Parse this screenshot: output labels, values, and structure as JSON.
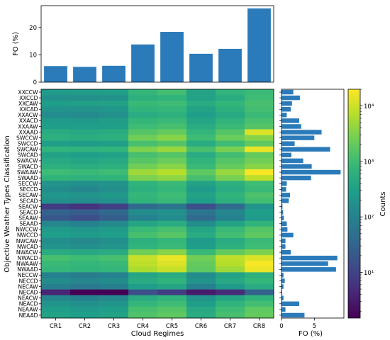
{
  "chart_data": [
    {
      "type": "bar",
      "name": "top-fo-bar-chart",
      "categories": [
        "CR1",
        "CR2",
        "CR3",
        "CR4",
        "CR5",
        "CR6",
        "CR7",
        "CR8"
      ],
      "values": [
        5.9,
        5.6,
        6.0,
        13.8,
        18.4,
        10.4,
        12.2,
        27.0
      ],
      "ylabel": "FO (%)",
      "ylim": [
        0,
        28
      ],
      "yticks": [
        0,
        10,
        20
      ],
      "color": "#2b7bba"
    },
    {
      "type": "heatmap",
      "name": "counts-heatmap",
      "xlabel": "Cloud Regimes",
      "ylabel": "Objective Weather Types Classification",
      "x": [
        "CR1",
        "CR2",
        "CR3",
        "CR4",
        "CR5",
        "CR6",
        "CR7",
        "CR8"
      ],
      "y": [
        "XXCCW",
        "XXCCD",
        "XXCAW",
        "XXCAD",
        "XXACW",
        "XXACD",
        "XXAAW",
        "XXAAD",
        "SWCCW",
        "SWCCD",
        "SWCAW",
        "SWCAD",
        "SWACW",
        "SWACD",
        "SWAAW",
        "SWAAD",
        "SECCW",
        "SECCD",
        "SECAW",
        "SECAD",
        "SEACW",
        "SEACD",
        "SEAAW",
        "SEAAD",
        "NWCCW",
        "NWCCD",
        "NWCAW",
        "NWCAD",
        "NWACW",
        "NWACD",
        "NWAAW",
        "NWAAD",
        "NECCW",
        "NECCD",
        "NECAW",
        "NECAD",
        "NEACW",
        "NEACD",
        "NEAAW",
        "NEAAD"
      ],
      "colorscale": "log",
      "zrange": [
        1.5,
        20000
      ],
      "values": [
        [
          250,
          270,
          290,
          800,
          1100,
          350,
          700,
          900
        ],
        [
          180,
          170,
          190,
          600,
          700,
          350,
          500,
          1000
        ],
        [
          300,
          320,
          340,
          900,
          1000,
          500,
          800,
          1200
        ],
        [
          200,
          190,
          220,
          700,
          800,
          350,
          600,
          1100
        ],
        [
          150,
          140,
          170,
          500,
          600,
          300,
          450,
          900
        ],
        [
          250,
          240,
          270,
          800,
          900,
          400,
          700,
          1200
        ],
        [
          300,
          290,
          310,
          1000,
          1200,
          500,
          900,
          1500
        ],
        [
          500,
          450,
          520,
          1500,
          2000,
          800,
          1500,
          12000
        ],
        [
          600,
          550,
          600,
          2500,
          3500,
          1000,
          2200,
          3500
        ],
        [
          300,
          280,
          310,
          1200,
          1500,
          500,
          1000,
          1800
        ],
        [
          700,
          650,
          700,
          3000,
          4500,
          1200,
          2800,
          15000
        ],
        [
          350,
          300,
          330,
          1200,
          1500,
          500,
          1100,
          2000
        ],
        [
          450,
          400,
          450,
          1600,
          2200,
          700,
          1500,
          2500
        ],
        [
          600,
          550,
          600,
          2500,
          3500,
          900,
          2000,
          3500
        ],
        [
          1000,
          900,
          1000,
          5000,
          7000,
          1800,
          4500,
          18000
        ],
        [
          700,
          650,
          700,
          3000,
          4000,
          1200,
          2800,
          8000
        ],
        [
          200,
          180,
          200,
          700,
          900,
          350,
          600,
          1000
        ],
        [
          150,
          120,
          160,
          600,
          800,
          250,
          500,
          900
        ],
        [
          220,
          200,
          230,
          800,
          1000,
          350,
          700,
          1300
        ],
        [
          180,
          150,
          180,
          700,
          900,
          300,
          600,
          1100
        ],
        [
          8,
          6,
          9,
          40,
          60,
          15,
          40,
          200
        ],
        [
          30,
          25,
          35,
          150,
          180,
          60,
          120,
          300
        ],
        [
          20,
          15,
          25,
          100,
          150,
          40,
          100,
          250
        ],
        [
          120,
          100,
          130,
          400,
          500,
          150,
          350,
          700
        ],
        [
          250,
          220,
          260,
          900,
          1200,
          400,
          900,
          1500
        ],
        [
          300,
          260,
          300,
          1200,
          1600,
          500,
          1100,
          1800
        ],
        [
          150,
          130,
          160,
          600,
          800,
          250,
          500,
          900
        ],
        [
          200,
          170,
          200,
          700,
          900,
          300,
          600,
          1000
        ],
        [
          500,
          450,
          500,
          2500,
          3500,
          900,
          2000,
          3000
        ],
        [
          1200,
          1000,
          1200,
          9000,
          15000,
          2500,
          8000,
          12000
        ],
        [
          900,
          800,
          900,
          8000,
          12000,
          2000,
          7000,
          18000
        ],
        [
          800,
          700,
          800,
          6000,
          9000,
          1800,
          5000,
          15000
        ],
        [
          100,
          80,
          100,
          400,
          500,
          150,
          350,
          600
        ],
        [
          150,
          120,
          150,
          500,
          700,
          200,
          450,
          800
        ],
        [
          90,
          70,
          90,
          300,
          400,
          100,
          250,
          500
        ],
        [
          4,
          1.5,
          1.5,
          15,
          8,
          3,
          5,
          30
        ],
        [
          120,
          100,
          120,
          500,
          700,
          200,
          400,
          700
        ],
        [
          200,
          180,
          200,
          800,
          1000,
          300,
          700,
          1100
        ],
        [
          300,
          250,
          300,
          1200,
          1500,
          450,
          1000,
          1800
        ],
        [
          350,
          300,
          350,
          1400,
          1800,
          500,
          1200,
          2000
        ]
      ]
    },
    {
      "type": "bar",
      "name": "side-fo-barh-chart",
      "orientation": "horizontal",
      "categories": [
        "XXCCW",
        "XXCCD",
        "XXCAW",
        "XXCAD",
        "XXACW",
        "XXACD",
        "XXAAW",
        "XXAAD",
        "SWCCW",
        "SWCCD",
        "SWCAW",
        "SWCAD",
        "SWACW",
        "SWACD",
        "SWAAW",
        "SWAAD",
        "SECCW",
        "SECCD",
        "SECAW",
        "SECAD",
        "SEACW",
        "SEACD",
        "SEAAW",
        "SEAAD",
        "NWCCW",
        "NWCCD",
        "NWCAW",
        "NWCAD",
        "NWACW",
        "NWACD",
        "NWAAW",
        "NWAAD",
        "NECCW",
        "NECCD",
        "NECAW",
        "NECAD",
        "NEACW",
        "NEACD",
        "NEAAW",
        "NEAAD"
      ],
      "values": [
        1.8,
        2.8,
        1.6,
        1.4,
        0.8,
        2.7,
        3.0,
        6.1,
        5.0,
        2.0,
        7.4,
        1.5,
        3.3,
        4.6,
        9.0,
        4.5,
        0.8,
        0.7,
        1.3,
        1.1,
        0.15,
        0.25,
        0.35,
        0.8,
        0.9,
        1.8,
        0.6,
        0.6,
        1.4,
        8.5,
        7.1,
        8.3,
        0.3,
        0.5,
        0.3,
        0.1,
        0.3,
        2.7,
        0.6,
        3.5
      ],
      "xlabel": "FO (%)",
      "xlim": [
        0,
        9.5
      ],
      "xticks": [
        0,
        5
      ],
      "color": "#2b7bba"
    },
    {
      "type": "colorbar",
      "name": "counts-colorbar",
      "label": "Counts",
      "scale": "log",
      "ticks": [
        "10¹",
        "10²",
        "10³",
        "10⁴"
      ],
      "tick_values": [
        10,
        100,
        1000,
        10000
      ]
    }
  ]
}
